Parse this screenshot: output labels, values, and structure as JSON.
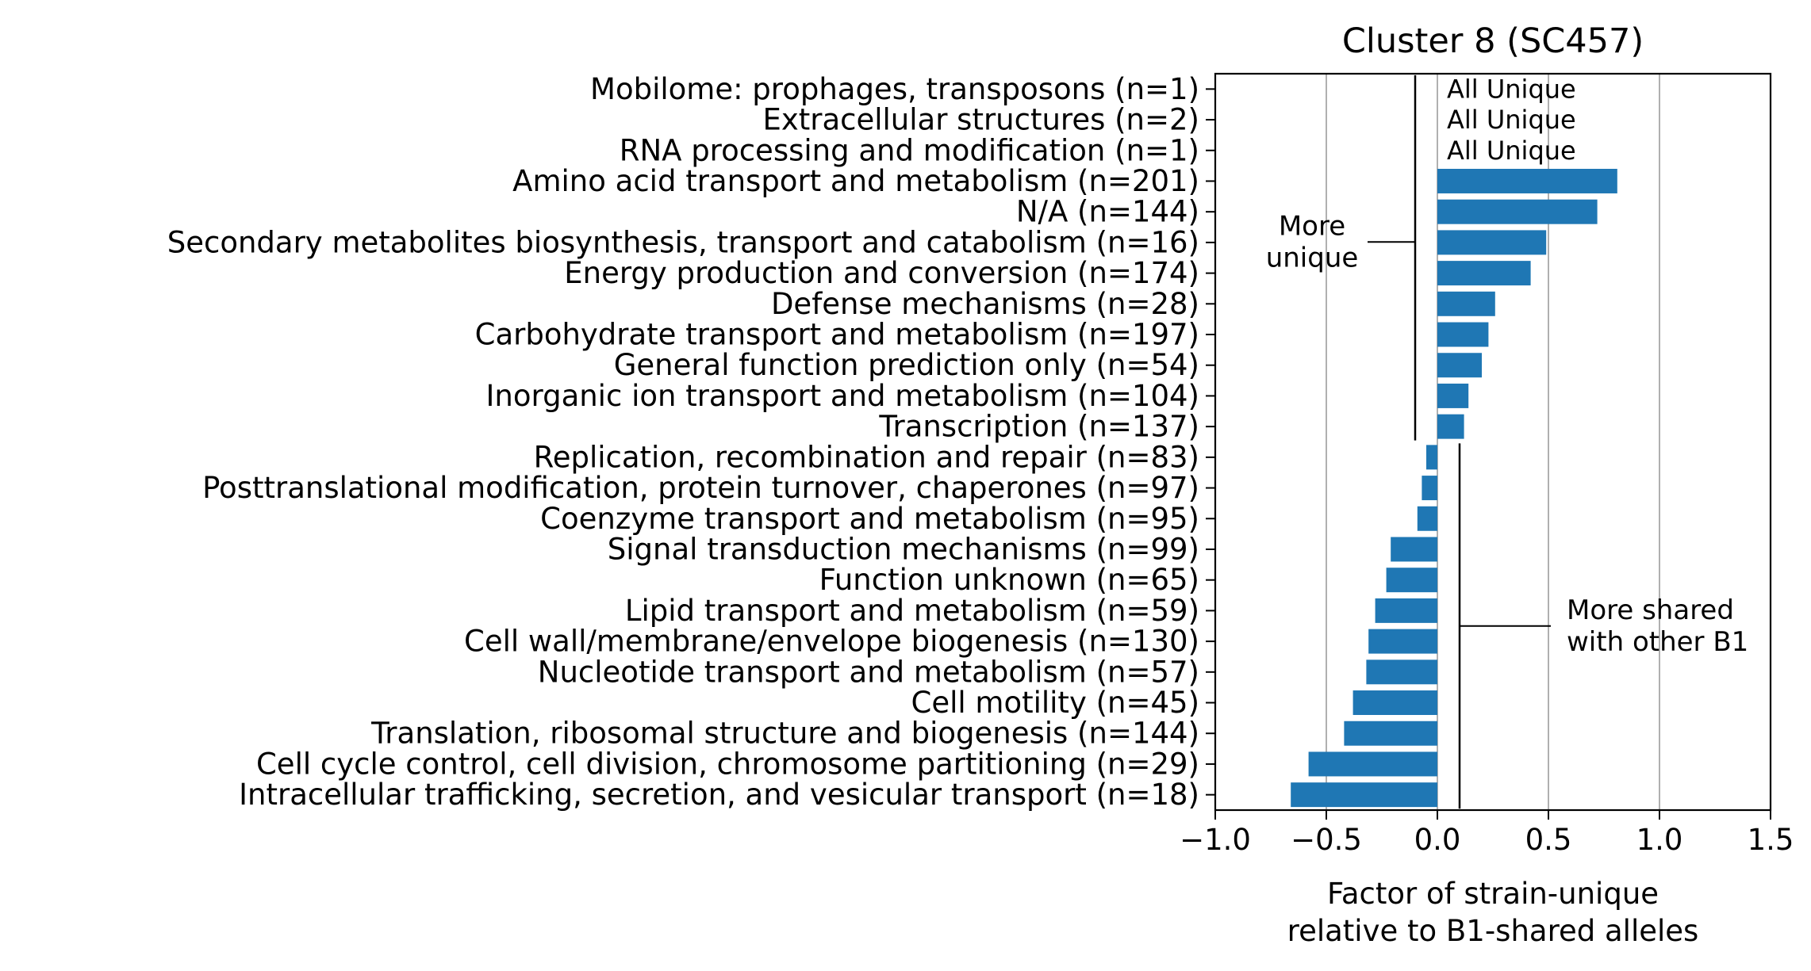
{
  "chart_data": {
    "type": "bar",
    "orientation": "horizontal",
    "title": "Cluster 8 (SC457)",
    "xlabel_lines": [
      "Factor of strain-unique",
      "relative to B1-shared alleles"
    ],
    "ylabel": "",
    "xlim": [
      -1.0,
      1.5
    ],
    "xticks": [
      -1.0,
      -0.5,
      0.0,
      0.5,
      1.0,
      1.5
    ],
    "xtick_labels": [
      "−1.0",
      "−0.5",
      "0.0",
      "0.5",
      "1.0",
      "1.5"
    ],
    "grid": "vertical",
    "bar_color": "#1f77b4",
    "categories": [
      "Mobilome: prophages, transposons (n=1)",
      "Extracellular structures (n=2)",
      "RNA processing and modification (n=1)",
      "Amino acid transport and metabolism (n=201)",
      "N/A (n=144)",
      "Secondary metabolites biosynthesis, transport and catabolism (n=16)",
      "Energy production and conversion (n=174)",
      "Defense mechanisms (n=28)",
      "Carbohydrate transport and metabolism (n=197)",
      "General function prediction only (n=54)",
      "Inorganic ion transport and metabolism (n=104)",
      "Transcription (n=137)",
      "Replication, recombination and repair (n=83)",
      "Posttranslational modification, protein turnover, chaperones (n=97)",
      "Coenzyme transport and metabolism (n=95)",
      "Signal transduction mechanisms (n=99)",
      "Function unknown (n=65)",
      "Lipid transport and metabolism (n=59)",
      "Cell wall/membrane/envelope biogenesis (n=130)",
      "Nucleotide transport and metabolism (n=57)",
      "Cell motility (n=45)",
      "Translation, ribosomal structure and biogenesis (n=144)",
      "Cell cycle control, cell division, chromosome partitioning (n=29)",
      "Intracellular trafficking, secretion, and vesicular transport (n=18)"
    ],
    "values": [
      null,
      null,
      null,
      0.81,
      0.72,
      0.49,
      0.42,
      0.26,
      0.23,
      0.2,
      0.14,
      0.12,
      -0.05,
      -0.07,
      -0.09,
      -0.21,
      -0.23,
      -0.28,
      -0.31,
      -0.32,
      -0.38,
      -0.42,
      -0.58,
      -0.66
    ],
    "bar_annotations": [
      {
        "category_index": 0,
        "text": "All Unique"
      },
      {
        "category_index": 1,
        "text": "All Unique"
      },
      {
        "category_index": 2,
        "text": "All Unique"
      }
    ],
    "brackets": [
      {
        "lines": [
          "More",
          "unique"
        ],
        "x_value": -0.1,
        "from_index": 0,
        "to_index": 11,
        "side": "left"
      },
      {
        "lines": [
          "More shared",
          "with other B1"
        ],
        "x_value": 0.1,
        "from_index": 12,
        "to_index": 23,
        "side": "right"
      }
    ]
  }
}
